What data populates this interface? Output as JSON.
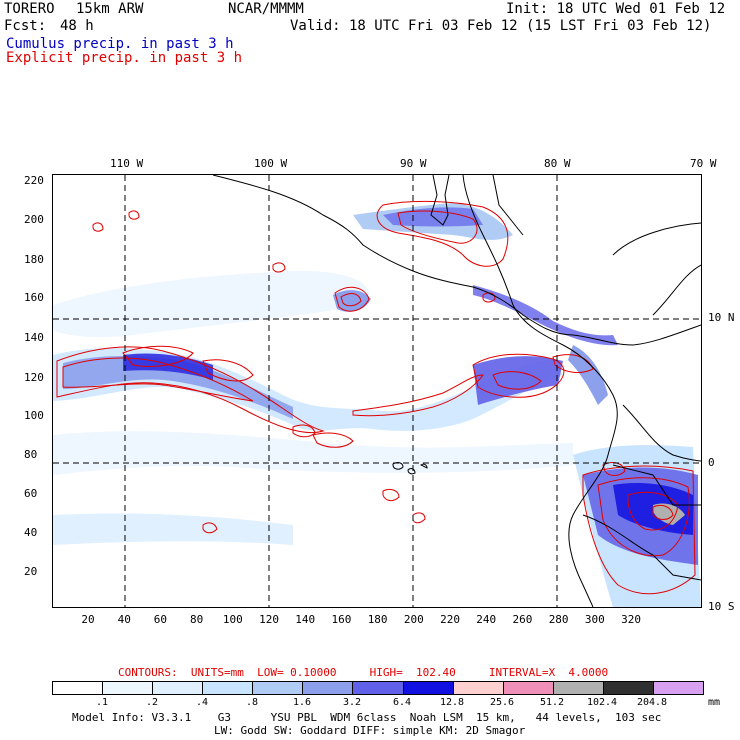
{
  "header": {
    "model_name": "TORERO",
    "resolution": "15km ARW",
    "org": "NCAR/MMMM",
    "init": "Init: 18 UTC Wed 01 Feb 12",
    "fcst_label": "Fcst:",
    "fcst_hours": "48 h",
    "valid": "Valid: 18 UTC Fri 03 Feb 12 (15 LST Fri 03 Feb 12)",
    "cumulus_label": "Cumulus precip. in past 3 h",
    "explicit_label": "Explicit precip. in past 3 h"
  },
  "colors": {
    "cumulus_text": "#0000c0",
    "explicit_text": "#e00000",
    "contour": "#e00000",
    "land_line": "#000000"
  },
  "map": {
    "top_labels": [
      "110 W",
      "100 W",
      "90 W",
      "80 W",
      "70 W"
    ],
    "right_labels": [
      "10 N",
      "0",
      "10 S"
    ],
    "left_labels": [
      "220",
      "200",
      "180",
      "160",
      "140",
      "120",
      "100",
      "80",
      "60",
      "40",
      "20"
    ],
    "bottom_labels": [
      "20",
      "40",
      "60",
      "80",
      "100",
      "120",
      "140",
      "160",
      "180",
      "200",
      "220",
      "240",
      "260",
      "280",
      "300",
      "320"
    ]
  },
  "contours": {
    "text": "CONTOURS:  UNITS=mm  LOW= 0.10000     HIGH=  102.40     INTERVAL=X  4.0000"
  },
  "legend": {
    "colors": [
      "#ffffff",
      "#eef6ff",
      "#e0f0ff",
      "#c8e4ff",
      "#b0ccf4",
      "#8ca0ec",
      "#6060e8",
      "#1010e0",
      "#ffd0d0",
      "#f090b8",
      "#b0b0b0",
      "#303030",
      "#d8a0f0"
    ],
    "labels": [
      ".1",
      ".2",
      ".4",
      ".8",
      "1.6",
      "3.2",
      "6.4",
      "12.8",
      "25.6",
      "51.2",
      "102.4",
      "204.8"
    ],
    "unit": "mm"
  },
  "footer": {
    "line1": "Model Info: V3.3.1    G3      YSU PBL  WDM 6class  Noah LSM  15 km,   44 levels,  103 sec",
    "line2": "LW: Godd SW: Goddard DIFF: simple KM: 2D Smagor"
  }
}
